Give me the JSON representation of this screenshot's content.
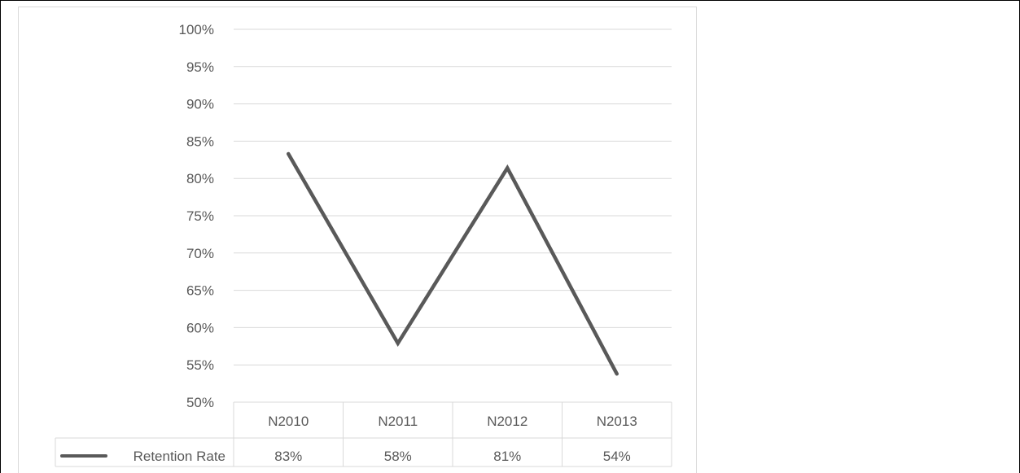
{
  "chart_data": {
    "type": "line",
    "categories": [
      "N2010",
      "N2011",
      "N2012",
      "N2013"
    ],
    "series": [
      {
        "name": "Retention Rate",
        "values": [
          83.3,
          57.9,
          81.4,
          53.8
        ],
        "labels": [
          "83%",
          "58%",
          "81%",
          "54%"
        ],
        "color": "#595959"
      }
    ],
    "y_ticks": [
      "50%",
      "55%",
      "60%",
      "65%",
      "70%",
      "75%",
      "80%",
      "85%",
      "90%",
      "95%",
      "100%"
    ],
    "ylim": [
      50,
      100
    ],
    "y_step": 5,
    "grid": true,
    "data_table": true,
    "colors": {
      "gridline": "#d9d9d9",
      "text": "#595959",
      "line": "#595959"
    }
  }
}
